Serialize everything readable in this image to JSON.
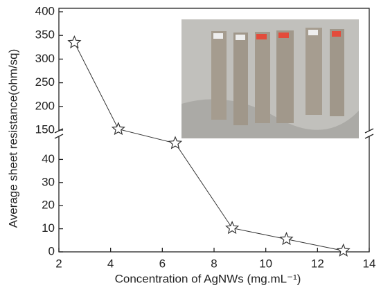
{
  "chart_data": {
    "type": "line",
    "x_label": "Concentration of AgNWs (mg.mL⁻¹)",
    "y_label": "Average sheet resistance(ohm/sq)",
    "x": [
      2.6,
      4.3,
      6.5,
      8.7,
      10.8,
      13.0
    ],
    "values": [
      335,
      152,
      47,
      10.3,
      5.5,
      0.5
    ],
    "color": "#333333",
    "xlim": [
      2,
      14
    ],
    "xticks": [
      2,
      4,
      6,
      8,
      10,
      12,
      14
    ],
    "ylim": [
      0,
      400
    ],
    "y_break": [
      50,
      150
    ],
    "yticks": [
      0,
      10,
      20,
      30,
      40,
      150,
      200,
      250,
      300,
      350,
      400
    ]
  }
}
